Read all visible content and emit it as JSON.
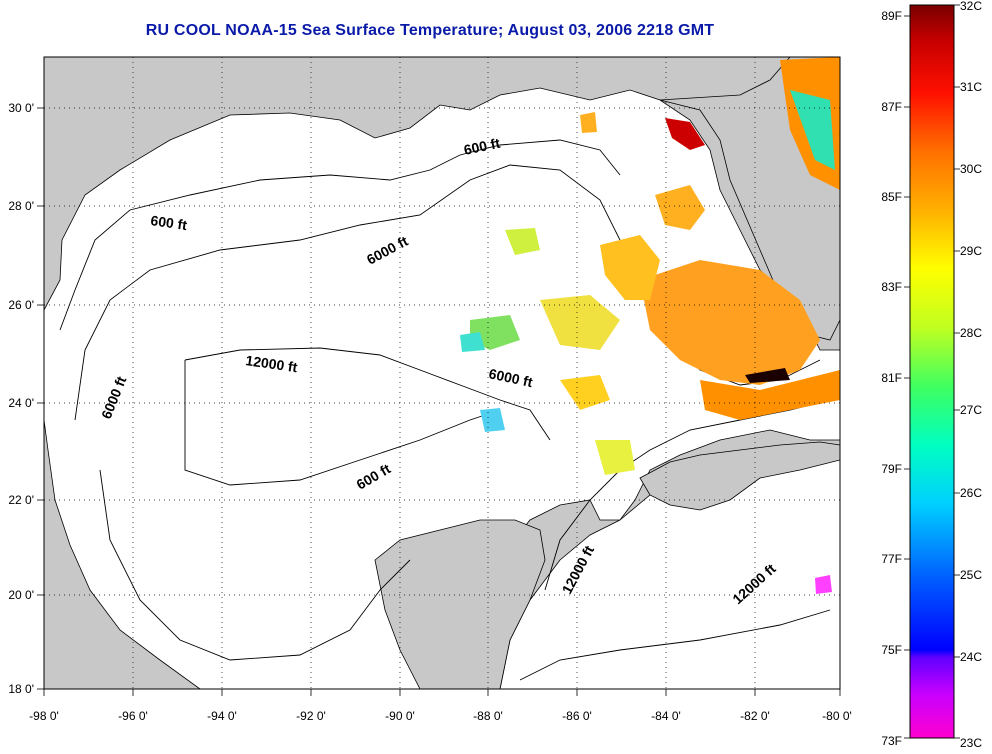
{
  "title": "RU COOL  NOAA-15  Sea Surface Temperature;  August 03, 2006 2218 GMT",
  "map": {
    "lon_range": [
      -98,
      -80
    ],
    "lat_range": [
      18,
      31
    ],
    "grid": "dotted",
    "lon_labels": [
      "-98 0'",
      "-96 0'",
      "-94 0'",
      "-92 0'",
      "-90 0'",
      "-88 0'",
      "-86 0'",
      "-84 0'",
      "-82 0'",
      "-80 0'"
    ],
    "lat_labels": [
      "18 0'",
      "20 0'",
      "22 0'",
      "24 0'",
      "26 0'",
      "28 0'",
      "30 0'"
    ],
    "contour_labels": [
      "600 ft",
      "600 ft",
      "600 ft",
      "6000 ft",
      "6000 ft",
      "6000 ft",
      "12000 ft",
      "12000 ft",
      "12000 ft"
    ],
    "colors": {
      "land": "#c8c8c8",
      "ocean": "#ffffff",
      "contour": "#000000"
    }
  },
  "colorbar": {
    "fahrenheit_labels": [
      "89F",
      "87F",
      "85F",
      "83F",
      "81F",
      "79F",
      "77F",
      "75F",
      "73F"
    ],
    "celsius_labels": [
      "32C",
      "31C",
      "30C",
      "29C",
      "28C",
      "27C",
      "26C",
      "25C",
      "24C",
      "23C"
    ],
    "celsius_range": [
      23,
      32
    ]
  }
}
